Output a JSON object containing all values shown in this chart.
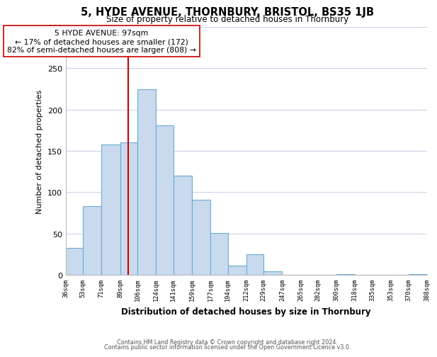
{
  "title": "5, HYDE AVENUE, THORNBURY, BRISTOL, BS35 1JB",
  "subtitle": "Size of property relative to detached houses in Thornbury",
  "xlabel": "Distribution of detached houses by size in Thornbury",
  "ylabel": "Number of detached properties",
  "bar_edges": [
    36,
    53,
    71,
    89,
    106,
    124,
    141,
    159,
    177,
    194,
    212,
    229,
    247,
    265,
    282,
    300,
    318,
    335,
    353,
    370,
    388
  ],
  "bar_heights": [
    33,
    83,
    158,
    160,
    225,
    181,
    120,
    91,
    51,
    11,
    25,
    4,
    0,
    0,
    0,
    1,
    0,
    0,
    0,
    1
  ],
  "bar_color": "#c9d9ee",
  "bar_edge_color": "#6bacd4",
  "property_line_x": 97,
  "property_line_color": "#cc0000",
  "ylim": [
    0,
    300
  ],
  "annotation_title": "5 HYDE AVENUE: 97sqm",
  "annotation_line1": "← 17% of detached houses are smaller (172)",
  "annotation_line2": "82% of semi-detached houses are larger (808) →",
  "annotation_box_color": "#ffffff",
  "annotation_box_edge": "#cc0000",
  "tick_labels": [
    "36sqm",
    "53sqm",
    "71sqm",
    "89sqm",
    "106sqm",
    "124sqm",
    "141sqm",
    "159sqm",
    "177sqm",
    "194sqm",
    "212sqm",
    "229sqm",
    "247sqm",
    "265sqm",
    "282sqm",
    "300sqm",
    "318sqm",
    "335sqm",
    "353sqm",
    "370sqm",
    "388sqm"
  ],
  "ytick_labels": [
    "0",
    "50",
    "100",
    "150",
    "200",
    "250",
    "300"
  ],
  "ytick_vals": [
    0,
    50,
    100,
    150,
    200,
    250,
    300
  ],
  "footer_line1": "Contains HM Land Registry data © Crown copyright and database right 2024.",
  "footer_line2": "Contains public sector information licensed under the Open Government Licence v3.0.",
  "grid_color": "#ccd6e8",
  "bg_color": "#ffffff"
}
